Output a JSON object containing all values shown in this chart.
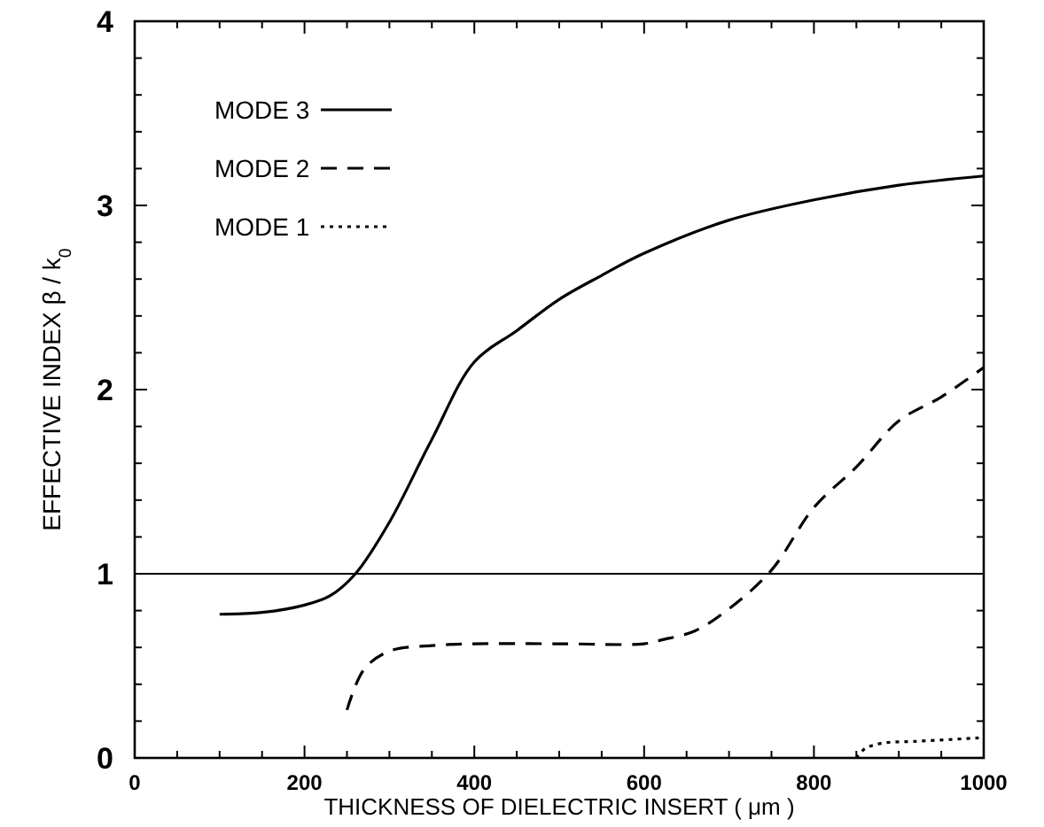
{
  "chart_data": {
    "type": "line",
    "xlabel": "THICKNESS OF DIELECTRIC INSERT ( μm )",
    "ylabel": "EFFECTIVE INDEX  β / k$_{0}$",
    "xlim": [
      0,
      1000
    ],
    "ylim": [
      0,
      4
    ],
    "xticks": [
      0,
      {
        "value": 50,
        "label": null
      },
      {
        "value": 100,
        "label": null
      },
      {
        "value": 150,
        "label": null
      },
      200,
      {
        "value": 250,
        "label": null
      },
      {
        "value": 300,
        "label": null
      },
      {
        "value": 350,
        "label": null
      },
      400,
      {
        "value": 450,
        "label": null
      },
      {
        "value": 500,
        "label": null
      },
      {
        "value": 550,
        "label": null
      },
      600,
      {
        "value": 650,
        "label": null
      },
      {
        "value": 700,
        "label": null
      },
      {
        "value": 750,
        "label": null
      },
      800,
      {
        "value": 850,
        "label": null
      },
      {
        "value": 900,
        "label": null
      },
      {
        "value": 950,
        "label": null
      },
      1000
    ],
    "yticks": [
      0,
      {
        "value": 0.2,
        "label": null
      },
      {
        "value": 0.4,
        "label": null
      },
      {
        "value": 0.6,
        "label": null
      },
      {
        "value": 0.8,
        "label": null
      },
      1,
      {
        "value": 1.2,
        "label": null
      },
      {
        "value": 1.4,
        "label": null
      },
      {
        "value": 1.6,
        "label": null
      },
      {
        "value": 1.8,
        "label": null
      },
      2,
      {
        "value": 2.2,
        "label": null
      },
      {
        "value": 2.4,
        "label": null
      },
      {
        "value": 2.6,
        "label": null
      },
      {
        "value": 2.8,
        "label": null
      },
      3,
      {
        "value": 3.2,
        "label": null
      },
      {
        "value": 3.4,
        "label": null
      },
      {
        "value": 3.6,
        "label": null
      },
      {
        "value": 3.8,
        "label": null
      },
      4
    ],
    "legend": "top left",
    "grid": false,
    "ref_lines": [
      {
        "axis": "y",
        "value": 1,
        "color": "#000000"
      }
    ],
    "series": [
      {
        "name": "MODE 3",
        "color": "#000000",
        "line_style": "solid",
        "x": [
          100,
          150,
          200,
          230,
          260,
          300,
          350,
          400,
          450,
          500,
          550,
          600,
          700,
          800,
          900,
          1000
        ],
        "values": [
          0.78,
          0.79,
          0.83,
          0.88,
          1.0,
          1.28,
          1.73,
          2.15,
          2.32,
          2.49,
          2.62,
          2.74,
          2.92,
          3.03,
          3.11,
          3.16
        ]
      },
      {
        "name": "MODE 2",
        "color": "#000000",
        "line_style": "dashed",
        "x": [
          250,
          270,
          300,
          350,
          400,
          500,
          600,
          620,
          660,
          700,
          750,
          800,
          850,
          900,
          950,
          1000
        ],
        "values": [
          0.26,
          0.48,
          0.58,
          0.61,
          0.62,
          0.62,
          0.62,
          0.64,
          0.69,
          0.81,
          1.02,
          1.36,
          1.58,
          1.83,
          1.96,
          2.12
        ]
      },
      {
        "name": "MODE 1",
        "color": "#000000",
        "line_style": "dotted",
        "x": [
          850,
          860,
          880,
          920,
          1000
        ],
        "values": [
          0,
          0.05,
          0.08,
          0.09,
          0.11
        ]
      }
    ]
  }
}
